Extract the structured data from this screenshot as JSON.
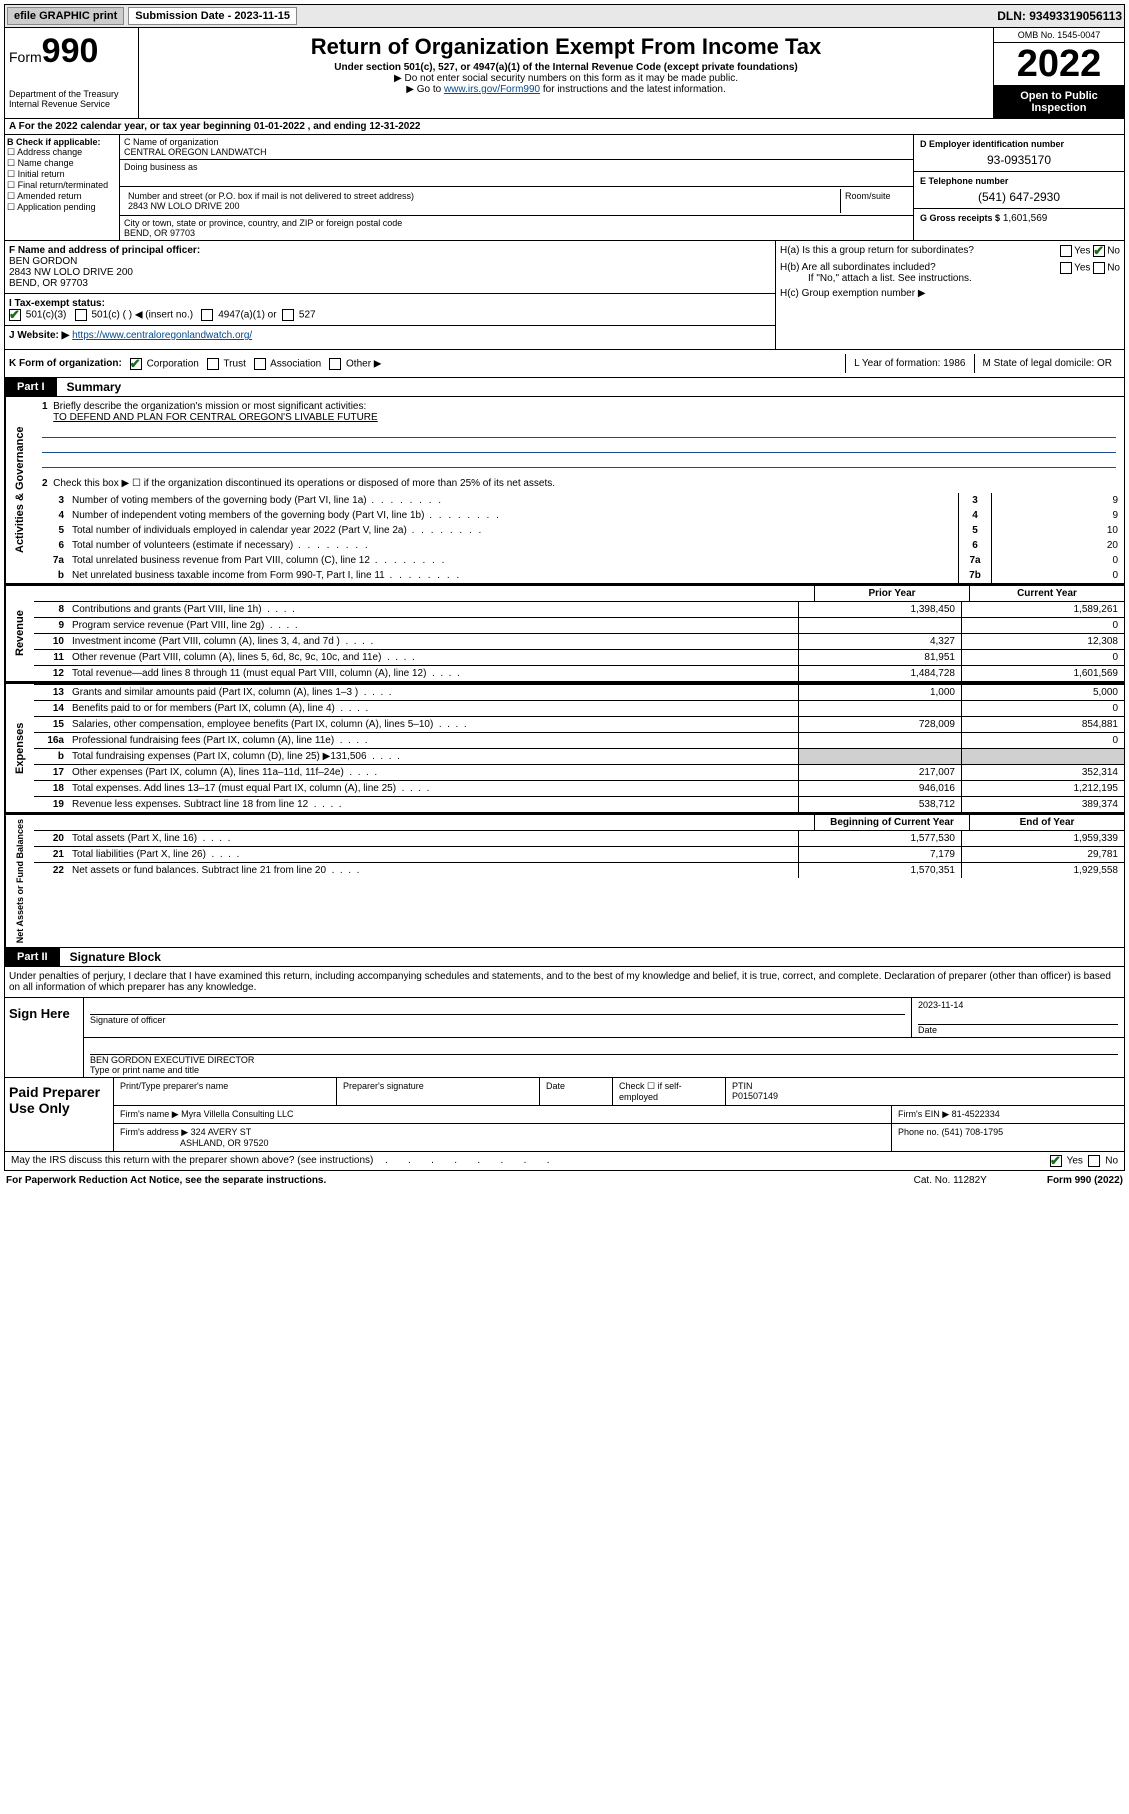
{
  "topbar": {
    "efile": "efile GRAPHIC print",
    "submission_label": "Submission Date - 2023-11-15",
    "dln": "DLN: 93493319056113"
  },
  "header": {
    "form_label": "Form",
    "form_num": "990",
    "dept": "Department of the Treasury",
    "irs": "Internal Revenue Service",
    "title": "Return of Organization Exempt From Income Tax",
    "sub": "Under section 501(c), 527, or 4947(a)(1) of the Internal Revenue Code (except private foundations)",
    "note1": "▶ Do not enter social security numbers on this form as it may be made public.",
    "note2_pre": "▶ Go to ",
    "note2_link": "www.irs.gov/Form990",
    "note2_post": " for instructions and the latest information.",
    "omb": "OMB No. 1545-0047",
    "year": "2022",
    "inspect": "Open to Public Inspection"
  },
  "rowA": "A For the 2022 calendar year, or tax year beginning 01-01-2022   , and ending 12-31-2022",
  "colB": {
    "hdr": "B Check if applicable:",
    "items": [
      "Address change",
      "Name change",
      "Initial return",
      "Final return/terminated",
      "Amended return",
      "Application pending"
    ]
  },
  "colC": {
    "name_lbl": "C Name of organization",
    "name": "CENTRAL OREGON LANDWATCH",
    "dba_lbl": "Doing business as",
    "addr_lbl": "Number and street (or P.O. box if mail is not delivered to street address)",
    "room_lbl": "Room/suite",
    "addr": "2843 NW LOLO DRIVE 200",
    "city_lbl": "City or town, state or province, country, and ZIP or foreign postal code",
    "city": "BEND, OR  97703"
  },
  "colD": {
    "ein_lbl": "D Employer identification number",
    "ein": "93-0935170",
    "phone_lbl": "E Telephone number",
    "phone": "(541) 647-2930",
    "gross_lbl": "G Gross receipts $",
    "gross": "1,601,569"
  },
  "rowF": {
    "lbl": "F  Name and address of principal officer:",
    "name": "BEN GORDON",
    "addr1": "2843 NW LOLO DRIVE 200",
    "addr2": "BEND, OR  97703"
  },
  "rowH": {
    "ha": "H(a)  Is this a group return for subordinates?",
    "hb": "H(b)  Are all subordinates included?",
    "hb_note": "If \"No,\" attach a list. See instructions.",
    "hc": "H(c)  Group exemption number ▶"
  },
  "rowI": {
    "lbl": "I     Tax-exempt status:",
    "o1": "501(c)(3)",
    "o2": "501(c) (  ) ◀ (insert no.)",
    "o3": "4947(a)(1) or",
    "o4": "527"
  },
  "rowJ": {
    "lbl": "J    Website: ▶",
    "url": "https://www.centraloregonlandwatch.org/"
  },
  "rowK": {
    "lbl": "K Form of organization:",
    "o1": "Corporation",
    "o2": "Trust",
    "o3": "Association",
    "o4": "Other ▶",
    "L": "L Year of formation: 1986",
    "M": "M State of legal domicile: OR"
  },
  "part1": {
    "tag": "Part I",
    "title": "Summary"
  },
  "gov": {
    "label": "Activities & Governance",
    "l1": "Briefly describe the organization's mission or most significant activities:",
    "l1v": "TO DEFEND AND PLAN FOR CENTRAL OREGON'S LIVABLE FUTURE",
    "l2": "Check this box ▶ ☐  if the organization discontinued its operations or disposed of more than 25% of its net assets.",
    "lines": [
      {
        "n": "3",
        "d": "Number of voting members of the governing body (Part VI, line 1a)",
        "b": "3",
        "v": "9"
      },
      {
        "n": "4",
        "d": "Number of independent voting members of the governing body (Part VI, line 1b)",
        "b": "4",
        "v": "9"
      },
      {
        "n": "5",
        "d": "Total number of individuals employed in calendar year 2022 (Part V, line 2a)",
        "b": "5",
        "v": "10"
      },
      {
        "n": "6",
        "d": "Total number of volunteers (estimate if necessary)",
        "b": "6",
        "v": "20"
      },
      {
        "n": "7a",
        "d": "Total unrelated business revenue from Part VIII, column (C), line 12",
        "b": "7a",
        "v": "0"
      },
      {
        "n": "b",
        "d": "Net unrelated business taxable income from Form 990-T, Part I, line 11",
        "b": "7b",
        "v": "0"
      }
    ]
  },
  "hdr_prior": "Prior Year",
  "hdr_current": "Current Year",
  "rev": {
    "label": "Revenue",
    "lines": [
      {
        "n": "8",
        "d": "Contributions and grants (Part VIII, line 1h)",
        "c1": "1,398,450",
        "c2": "1,589,261"
      },
      {
        "n": "9",
        "d": "Program service revenue (Part VIII, line 2g)",
        "c1": "",
        "c2": "0"
      },
      {
        "n": "10",
        "d": "Investment income (Part VIII, column (A), lines 3, 4, and 7d )",
        "c1": "4,327",
        "c2": "12,308"
      },
      {
        "n": "11",
        "d": "Other revenue (Part VIII, column (A), lines 5, 6d, 8c, 9c, 10c, and 11e)",
        "c1": "81,951",
        "c2": "0"
      },
      {
        "n": "12",
        "d": "Total revenue—add lines 8 through 11 (must equal Part VIII, column (A), line 12)",
        "c1": "1,484,728",
        "c2": "1,601,569"
      }
    ]
  },
  "exp": {
    "label": "Expenses",
    "lines": [
      {
        "n": "13",
        "d": "Grants and similar amounts paid (Part IX, column (A), lines 1–3 )",
        "c1": "1,000",
        "c2": "5,000"
      },
      {
        "n": "14",
        "d": "Benefits paid to or for members (Part IX, column (A), line 4)",
        "c1": "",
        "c2": "0"
      },
      {
        "n": "15",
        "d": "Salaries, other compensation, employee benefits (Part IX, column (A), lines 5–10)",
        "c1": "728,009",
        "c2": "854,881"
      },
      {
        "n": "16a",
        "d": "Professional fundraising fees (Part IX, column (A), line 11e)",
        "c1": "",
        "c2": "0"
      },
      {
        "n": "b",
        "d": "Total fundraising expenses (Part IX, column (D), line 25) ▶131,506",
        "c1": "shade",
        "c2": "shade"
      },
      {
        "n": "17",
        "d": "Other expenses (Part IX, column (A), lines 11a–11d, 11f–24e)",
        "c1": "217,007",
        "c2": "352,314"
      },
      {
        "n": "18",
        "d": "Total expenses. Add lines 13–17 (must equal Part IX, column (A), line 25)",
        "c1": "946,016",
        "c2": "1,212,195"
      },
      {
        "n": "19",
        "d": "Revenue less expenses. Subtract line 18 from line 12",
        "c1": "538,712",
        "c2": "389,374"
      }
    ]
  },
  "hdr_begin": "Beginning of Current Year",
  "hdr_end": "End of Year",
  "net": {
    "label": "Net Assets or Fund Balances",
    "lines": [
      {
        "n": "20",
        "d": "Total assets (Part X, line 16)",
        "c1": "1,577,530",
        "c2": "1,959,339"
      },
      {
        "n": "21",
        "d": "Total liabilities (Part X, line 26)",
        "c1": "7,179",
        "c2": "29,781"
      },
      {
        "n": "22",
        "d": "Net assets or fund balances. Subtract line 21 from line 20",
        "c1": "1,570,351",
        "c2": "1,929,558"
      }
    ]
  },
  "part2": {
    "tag": "Part II",
    "title": "Signature Block"
  },
  "sig": {
    "decl": "Under penalties of perjury, I declare that I have examined this return, including accompanying schedules and statements, and to the best of my knowledge and belief, it is true, correct, and complete. Declaration of preparer (other than officer) is based on all information of which preparer has any knowledge.",
    "here": "Sign Here",
    "sig_lbl": "Signature of officer",
    "date_lbl": "Date",
    "date": "2023-11-14",
    "name": "BEN GORDON  EXECUTIVE DIRECTOR",
    "name_lbl": "Type or print name and title"
  },
  "prep": {
    "label": "Paid Preparer Use Only",
    "h1": "Print/Type preparer's name",
    "h2": "Preparer's signature",
    "h3": "Date",
    "h4": "Check ☐ if self-employed",
    "h5_lbl": "PTIN",
    "h5": "P01507149",
    "firm_lbl": "Firm's name    ▶",
    "firm": "Myra Villella Consulting LLC",
    "ein_lbl": "Firm's EIN ▶",
    "ein": "81-4522334",
    "addr_lbl": "Firm's address ▶",
    "addr1": "324 AVERY ST",
    "addr2": "ASHLAND, OR  97520",
    "phone_lbl": "Phone no.",
    "phone": "(541) 708-1795"
  },
  "footer": {
    "q": "May the IRS discuss this return with the preparer shown above? (see instructions)",
    "paperwork": "For Paperwork Reduction Act Notice, see the separate instructions.",
    "cat": "Cat. No. 11282Y",
    "form": "Form 990 (2022)"
  }
}
